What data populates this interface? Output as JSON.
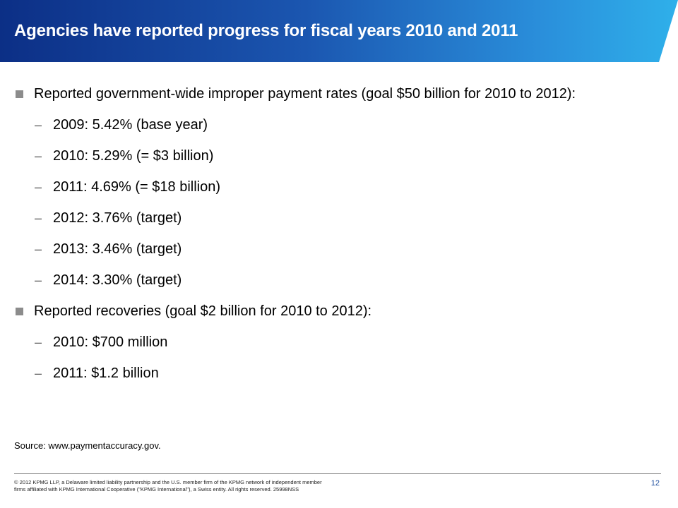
{
  "header": {
    "title": "Agencies have reported progress for fiscal years 2010 and 2011"
  },
  "content": {
    "sections": [
      {
        "text": "Reported government-wide improper payment rates (goal $50 billion for 2010 to 2012):",
        "subitems": [
          "2009: 5.42% (base year)",
          "2010: 5.29% (= $3 billion)",
          "2011: 4.69% (= $18 billion)",
          "2012: 3.76% (target)",
          "2013: 3.46% (target)",
          "2014: 3.30% (target)"
        ]
      },
      {
        "text": "Reported recoveries (goal $2 billion for 2010 to 2012):",
        "subitems": [
          "2010: $700 million",
          "2011: $1.2 billion"
        ]
      }
    ],
    "dash_symbol": "–"
  },
  "source": "Source: www.paymentaccuracy.gov.",
  "footer": {
    "copyright_line1": "© 2012 KPMG LLP, a Delaware limited liability partnership and the U.S. member firm of the KPMG network of independent member",
    "copyright_line2": "firms affiliated with KPMG International Cooperative (\"KPMG International\"), a Swiss entity. All rights reserved. 25998NSS",
    "page_number": "12"
  },
  "colors": {
    "title_gradient_start": "#0c2f86",
    "title_gradient_end": "#2fb0ea",
    "bullet": "#8c8c8c",
    "page_number": "#1f4f9f"
  }
}
